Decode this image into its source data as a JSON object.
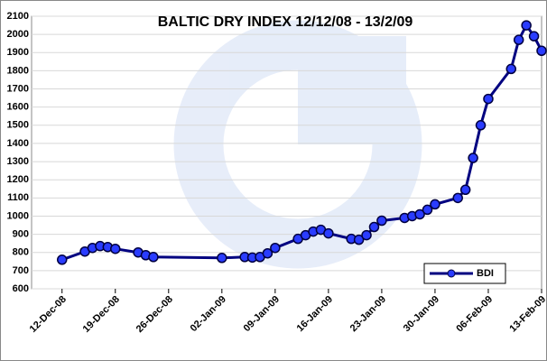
{
  "chart_data": {
    "type": "line",
    "title": "BALTIC DRY INDEX 12/12/08 - 13/2/09",
    "x": [
      "2008-12-12",
      "2008-12-15",
      "2008-12-16",
      "2008-12-17",
      "2008-12-18",
      "2008-12-19",
      "2008-12-22",
      "2008-12-23",
      "2008-12-24",
      "2009-01-02",
      "2009-01-05",
      "2009-01-06",
      "2009-01-07",
      "2009-01-08",
      "2009-01-09",
      "2009-01-12",
      "2009-01-13",
      "2009-01-14",
      "2009-01-15",
      "2009-01-16",
      "2009-01-19",
      "2009-01-20",
      "2009-01-21",
      "2009-01-22",
      "2009-01-23",
      "2009-01-26",
      "2009-01-27",
      "2009-01-28",
      "2009-01-29",
      "2009-01-30",
      "2009-02-02",
      "2009-02-03",
      "2009-02-04",
      "2009-02-05",
      "2009-02-06",
      "2009-02-09",
      "2009-02-10",
      "2009-02-11",
      "2009-02-12",
      "2009-02-13"
    ],
    "series": [
      {
        "name": "BDI",
        "color": "#000080",
        "marker_color": "#2a3cff",
        "values": [
          760,
          805,
          825,
          835,
          830,
          820,
          800,
          785,
          775,
          770,
          775,
          772,
          775,
          795,
          825,
          875,
          895,
          915,
          925,
          905,
          875,
          870,
          895,
          940,
          975,
          990,
          1000,
          1010,
          1035,
          1065,
          1100,
          1145,
          1320,
          1500,
          1645,
          1810,
          1970,
          2050,
          1990,
          1910
        ]
      }
    ],
    "xlim": [
      "2008-12-08",
      "2009-02-13"
    ],
    "xticks": [
      {
        "value": "2008-12-12",
        "label": "12-Dec-08"
      },
      {
        "value": "2008-12-19",
        "label": "19-Dec-08"
      },
      {
        "value": "2008-12-26",
        "label": "26-Dec-08"
      },
      {
        "value": "2009-01-02",
        "label": "02-Jan-09"
      },
      {
        "value": "2009-01-09",
        "label": "09-Jan-09"
      },
      {
        "value": "2009-01-16",
        "label": "16-Jan-09"
      },
      {
        "value": "2009-01-23",
        "label": "23-Jan-09"
      },
      {
        "value": "2009-01-30",
        "label": "30-Jan-09"
      },
      {
        "value": "2009-02-06",
        "label": "06-Feb-09"
      },
      {
        "value": "2009-02-13",
        "label": "13-Feb-09"
      }
    ],
    "ylim": [
      600,
      2100
    ],
    "yticks": [
      600,
      700,
      800,
      900,
      1000,
      1100,
      1200,
      1300,
      1400,
      1500,
      1600,
      1700,
      1800,
      1900,
      2000,
      2100
    ],
    "grid": true,
    "legend": "lower right"
  }
}
